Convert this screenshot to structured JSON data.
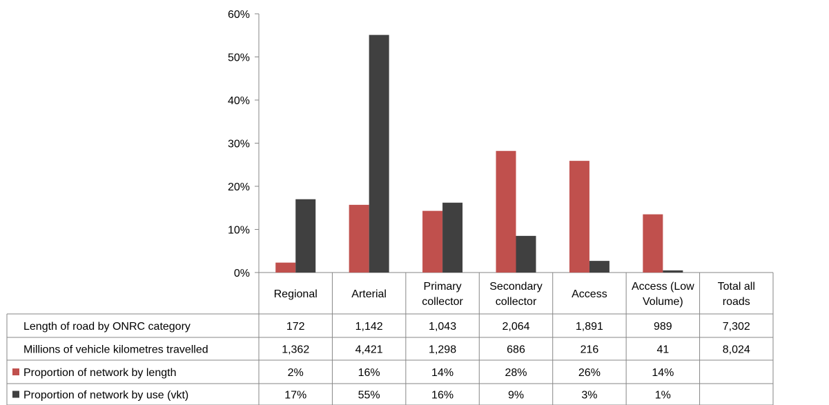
{
  "chart_data": {
    "type": "bar",
    "categories": [
      [
        "Regional"
      ],
      [
        "Arterial"
      ],
      [
        "Primary",
        "collector"
      ],
      [
        "Secondary",
        "collector"
      ],
      [
        "Access"
      ],
      [
        "Access (Low",
        "Volume)"
      ],
      [
        "Total all",
        "roads"
      ]
    ],
    "ylim": [
      0,
      0.6
    ],
    "yticks": [
      "0%",
      "10%",
      "20%",
      "30%",
      "40%",
      "50%",
      "60%"
    ],
    "grid": false,
    "series": [
      {
        "name": "Proportion of network by length",
        "color": "#C0504D",
        "values": [
          0.023,
          0.157,
          0.143,
          0.282,
          0.259,
          0.135,
          null
        ]
      },
      {
        "name": "Proportion of network by use (vkt)",
        "color": "#404040",
        "values": [
          0.17,
          0.551,
          0.162,
          0.085,
          0.027,
          0.005,
          null
        ]
      }
    ],
    "table": [
      {
        "label": "Length of road by ONRC category",
        "legend": false,
        "values": [
          "172",
          "1,142",
          "1,043",
          "2,064",
          "1,891",
          "989",
          "7,302"
        ]
      },
      {
        "label": "Millions of vehicle kilometres travelled",
        "legend": false,
        "values": [
          "1,362",
          "4,421",
          "1,298",
          "686",
          "216",
          "41",
          "8,024"
        ]
      },
      {
        "label": "Proportion of network by length",
        "legend": true,
        "series": 0,
        "values": [
          "2%",
          "16%",
          "14%",
          "28%",
          "26%",
          "14%",
          ""
        ]
      },
      {
        "label": "Proportion of network by use (vkt)",
        "legend": true,
        "series": 1,
        "values": [
          "17%",
          "55%",
          "16%",
          "9%",
          "3%",
          "1%",
          ""
        ]
      }
    ]
  }
}
